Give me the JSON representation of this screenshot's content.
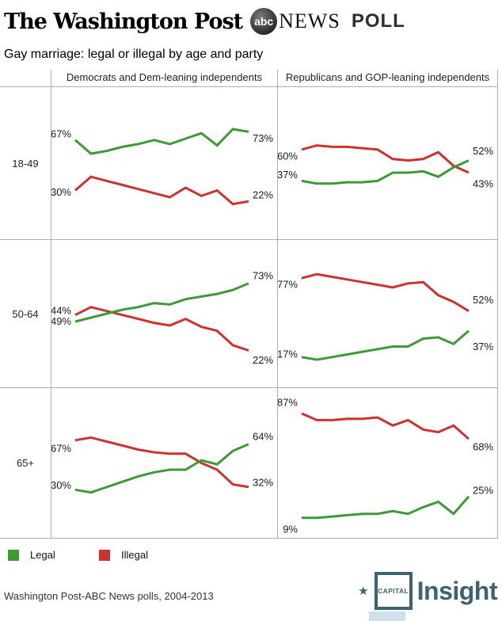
{
  "masthead": {
    "wapo": "The Washington Post",
    "abc_circle": "abc",
    "news": "NEWS",
    "poll": "POLL"
  },
  "title": "Gay marriage: legal or illegal by age and party",
  "chart_data": {
    "type": "line",
    "title": "Gay marriage: legal or illegal by age and party",
    "x_range": "2004-2013",
    "ylim": [
      0,
      100
    ],
    "grid": false,
    "columns": [
      "Democrats and Dem-leaning independents",
      "Republicans and GOP-leaning independents"
    ],
    "rows": [
      "18-49",
      "50-64",
      "65+"
    ],
    "legend": [
      {
        "label": "Legal",
        "color": "#3c9b35"
      },
      {
        "label": "Illegal",
        "color": "#cc3330"
      }
    ],
    "panels": [
      {
        "row": "18-49",
        "column": "Democrats and Dem-leaning independents",
        "series": [
          {
            "name": "Legal",
            "color": "#3c9b35",
            "values": [
              67,
              57,
              59,
              62,
              64,
              67,
              64,
              68,
              72,
              63,
              75,
              73
            ],
            "start_label": {
              "text": "67%",
              "dy": -8
            },
            "end_label": {
              "text": "73%",
              "dy": 8
            }
          },
          {
            "name": "Illegal",
            "color": "#cc3330",
            "values": [
              30,
              40,
              37,
              34,
              31,
              28,
              25,
              32,
              26,
              30,
              20,
              22
            ],
            "start_label": {
              "text": "30%",
              "dy": 2
            },
            "end_label": {
              "text": "22%",
              "dy": -8
            }
          }
        ]
      },
      {
        "row": "18-49",
        "column": "Republicans and GOP-leaning independents",
        "series": [
          {
            "name": "Legal",
            "color": "#3c9b35",
            "values": [
              37,
              35,
              35,
              36,
              36,
              37,
              43,
              43,
              44,
              40,
              47,
              52
            ],
            "start_label": {
              "text": "37%",
              "dy": -8
            },
            "end_label": {
              "text": "52%",
              "dy": -12
            }
          },
          {
            "name": "Illegal",
            "color": "#cc3330",
            "values": [
              60,
              63,
              62,
              62,
              61,
              60,
              53,
              52,
              53,
              58,
              48,
              43
            ],
            "start_label": {
              "text": "60%",
              "dy": 8
            },
            "end_label": {
              "text": "43%",
              "dy": 14
            }
          }
        ]
      },
      {
        "row": "50-64",
        "column": "Democrats and Dem-leaning independents",
        "series": [
          {
            "name": "Legal",
            "color": "#3c9b35",
            "values": [
              44,
              47,
              50,
              53,
              55,
              58,
              57,
              61,
              63,
              65,
              68,
              73
            ],
            "start_label": {
              "text": "44%",
              "dy": -14
            },
            "end_label": {
              "text": "73%",
              "dy": -10
            }
          },
          {
            "name": "Illegal",
            "color": "#cc3330",
            "values": [
              49,
              55,
              52,
              49,
              46,
              43,
              41,
              46,
              40,
              37,
              26,
              22
            ],
            "start_label": {
              "text": "49%",
              "dy": 8
            },
            "end_label": {
              "text": "22%",
              "dy": 12
            }
          }
        ]
      },
      {
        "row": "50-64",
        "column": "Republicans and GOP-leaning independents",
        "series": [
          {
            "name": "Legal",
            "color": "#3c9b35",
            "values": [
              17,
              15,
              17,
              19,
              21,
              23,
              25,
              25,
              31,
              32,
              27,
              37
            ],
            "start_label": {
              "text": "17%",
              "dy": -4
            },
            "end_label": {
              "text": "37%",
              "dy": 20
            }
          },
          {
            "name": "Illegal",
            "color": "#cc3330",
            "values": [
              77,
              80,
              78,
              76,
              74,
              72,
              70,
              73,
              74,
              64,
              59,
              52
            ],
            "start_label": {
              "text": "77%",
              "dy": 8
            },
            "end_label": {
              "text": "52%",
              "dy": -14
            }
          }
        ]
      },
      {
        "row": "65+",
        "column": "Democrats and Dem-leaning independents",
        "series": [
          {
            "name": "Legal",
            "color": "#3c9b35",
            "values": [
              30,
              28,
              32,
              36,
              40,
              43,
              45,
              45,
              52,
              49,
              59,
              64
            ],
            "start_label": {
              "text": "30%",
              "dy": -6
            },
            "end_label": {
              "text": "64%",
              "dy": -10
            }
          },
          {
            "name": "Illegal",
            "color": "#cc3330",
            "values": [
              67,
              69,
              66,
              63,
              60,
              58,
              57,
              57,
              50,
              45,
              34,
              32
            ],
            "start_label": {
              "text": "67%",
              "dy": 10
            },
            "end_label": {
              "text": "32%",
              "dy": -6
            }
          }
        ]
      },
      {
        "row": "65+",
        "column": "Republicans and GOP-leaning independents",
        "series": [
          {
            "name": "Legal",
            "color": "#3c9b35",
            "values": [
              9,
              9,
              10,
              11,
              12,
              12,
              14,
              12,
              17,
              21,
              12,
              25
            ],
            "start_label": {
              "text": "9%",
              "dy": 14
            },
            "end_label": {
              "text": "25%",
              "dy": -8
            }
          },
          {
            "name": "Illegal",
            "color": "#cc3330",
            "values": [
              87,
              82,
              82,
              83,
              83,
              84,
              78,
              82,
              75,
              73,
              78,
              68
            ],
            "start_label": {
              "text": "87%",
              "dy": -14
            },
            "end_label": {
              "text": "68%",
              "dy": 10
            }
          }
        ]
      }
    ]
  },
  "footer": {
    "source": "Washington Post-ABC News polls, 2004-2013"
  },
  "logo": {
    "star": "★",
    "box": "CAPITAL",
    "name": "Insight"
  }
}
